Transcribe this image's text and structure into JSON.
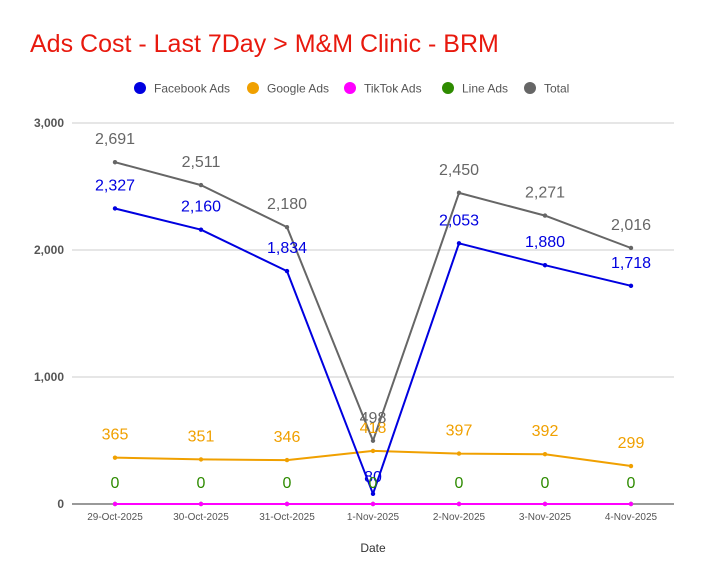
{
  "chart_data": {
    "type": "line",
    "title": "Ads Cost - Last 7Day > M&M Clinic - BRM",
    "xlabel": "Date",
    "ylabel": "",
    "ylim": [
      0,
      3000
    ],
    "yticks": [
      0,
      1000,
      2000,
      3000
    ],
    "ytick_labels": [
      "0",
      "1,000",
      "2,000",
      "3,000"
    ],
    "x": [
      "29-Oct-2025",
      "30-Oct-2025",
      "31-Oct-2025",
      "1-Nov-2025",
      "2-Nov-2025",
      "3-Nov-2025",
      "4-Nov-2025"
    ],
    "legend_position": "top",
    "grid": true,
    "series": [
      {
        "name": "Facebook Ads",
        "color": "#0000e0",
        "values": [
          2327,
          2160,
          1834,
          80,
          2053,
          1880,
          1718
        ],
        "labels": [
          "2,327",
          "2,160",
          "1,834",
          "80",
          "2,053",
          "1,880",
          "1,718"
        ]
      },
      {
        "name": "Google Ads",
        "color": "#f0a000",
        "values": [
          365,
          351,
          346,
          418,
          397,
          392,
          299
        ],
        "labels": [
          "365",
          "351",
          "346",
          "418",
          "397",
          "392",
          "299"
        ]
      },
      {
        "name": "TikTok Ads",
        "color": "#ff00ff",
        "values": [
          0,
          0,
          0,
          0,
          0,
          0,
          0
        ],
        "labels": [
          "0",
          "0",
          "0",
          "0",
          "0",
          "0",
          "0"
        ]
      },
      {
        "name": "Line Ads",
        "color": "#2e8b00",
        "values": [
          0,
          0,
          0,
          0,
          0,
          0,
          0
        ],
        "labels": [
          "0",
          "0",
          "0",
          "0",
          "0",
          "0",
          "0"
        ]
      },
      {
        "name": "Total",
        "color": "#666666",
        "values": [
          2691,
          2511,
          2180,
          498,
          2450,
          2271,
          2016
        ],
        "labels": [
          "2,691",
          "2,511",
          "2,180",
          "498",
          "2,450",
          "2,271",
          "2,016"
        ]
      }
    ]
  }
}
